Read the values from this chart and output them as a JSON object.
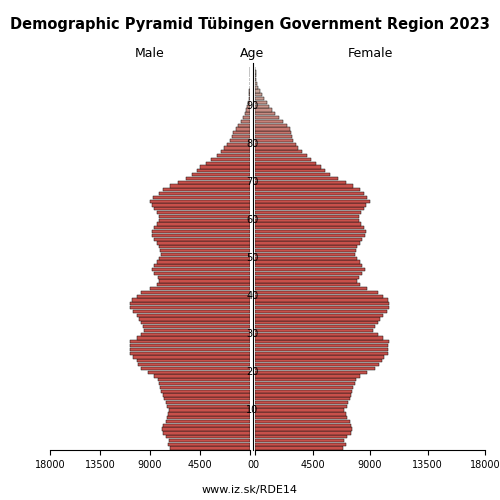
{
  "title": "Demographic Pyramid Tübingen Government Region 2023",
  "male_label": "Male",
  "female_label": "Female",
  "age_label": "Age",
  "url": "www.iz.sk/RDE14",
  "xlim": 18000,
  "xticks": [
    0,
    4500,
    9000,
    13500,
    18000
  ],
  "bar_color_young": "#c8504a",
  "bar_color_old_male": "#c8c0b4",
  "bar_color_old_female": "#c8c0b4",
  "bar_edgecolor": "#111111",
  "ages": [
    0,
    1,
    2,
    3,
    4,
    5,
    6,
    7,
    8,
    9,
    10,
    11,
    12,
    13,
    14,
    15,
    16,
    17,
    18,
    19,
    20,
    21,
    22,
    23,
    24,
    25,
    26,
    27,
    28,
    29,
    30,
    31,
    32,
    33,
    34,
    35,
    36,
    37,
    38,
    39,
    40,
    41,
    42,
    43,
    44,
    45,
    46,
    47,
    48,
    49,
    50,
    51,
    52,
    53,
    54,
    55,
    56,
    57,
    58,
    59,
    60,
    61,
    62,
    63,
    64,
    65,
    66,
    67,
    68,
    69,
    70,
    71,
    72,
    73,
    74,
    75,
    76,
    77,
    78,
    79,
    80,
    81,
    82,
    83,
    84,
    85,
    86,
    87,
    88,
    89,
    90,
    91,
    92,
    93,
    94,
    95,
    96,
    97,
    98,
    99,
    100
  ],
  "male": [
    7200,
    7400,
    7300,
    7600,
    7800,
    7900,
    7800,
    7600,
    7500,
    7400,
    7300,
    7500,
    7600,
    7700,
    7800,
    8000,
    8100,
    8200,
    8300,
    8600,
    9200,
    9800,
    10100,
    10200,
    10500,
    10800,
    10800,
    10800,
    10800,
    10200,
    9800,
    9500,
    9600,
    9800,
    10000,
    10200,
    10500,
    10800,
    10800,
    10600,
    10200,
    9800,
    9000,
    8400,
    8200,
    8300,
    8600,
    8800,
    8600,
    8400,
    8200,
    8000,
    8100,
    8200,
    8400,
    8600,
    8800,
    8800,
    8600,
    8400,
    8200,
    8200,
    8400,
    8600,
    8800,
    9000,
    8700,
    8200,
    7800,
    7200,
    6500,
    5800,
    5200,
    4800,
    4500,
    4000,
    3500,
    3000,
    2600,
    2300,
    2100,
    1800,
    1600,
    1500,
    1300,
    1100,
    800,
    600,
    450,
    350,
    250,
    180,
    120,
    80,
    55,
    35,
    22,
    14,
    9,
    5,
    2
  ],
  "female": [
    6900,
    7100,
    7000,
    7200,
    7500,
    7600,
    7500,
    7400,
    7200,
    7100,
    7000,
    7200,
    7300,
    7400,
    7500,
    7600,
    7700,
    7800,
    7900,
    8200,
    8800,
    9400,
    9700,
    9900,
    10100,
    10400,
    10400,
    10400,
    10500,
    10000,
    9600,
    9200,
    9400,
    9600,
    9800,
    10000,
    10300,
    10500,
    10500,
    10400,
    10000,
    9600,
    8800,
    8200,
    8000,
    8100,
    8400,
    8600,
    8400,
    8200,
    8000,
    7800,
    7900,
    8000,
    8200,
    8400,
    8600,
    8700,
    8500,
    8300,
    8100,
    8100,
    8300,
    8500,
    8700,
    9000,
    8800,
    8500,
    8200,
    7700,
    7100,
    6500,
    5900,
    5500,
    5200,
    4800,
    4400,
    4100,
    3700,
    3400,
    3200,
    3000,
    2900,
    2800,
    2700,
    2500,
    2200,
    1900,
    1600,
    1300,
    1100,
    900,
    700,
    520,
    380,
    260,
    170,
    110,
    70,
    40,
    15
  ],
  "color_threshold_age": 75
}
